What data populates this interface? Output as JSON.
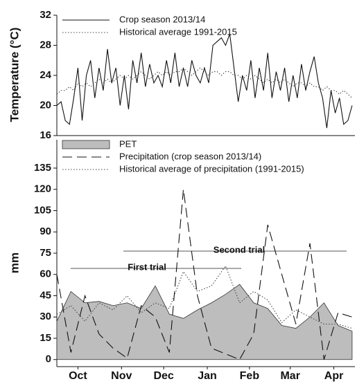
{
  "chart_data": [
    {
      "type": "line",
      "ylabel": "Temperature (°C)",
      "x": [
        0,
        3,
        6,
        9,
        12,
        15,
        18,
        21,
        24,
        27,
        30,
        33,
        36,
        39,
        42,
        45,
        48,
        51,
        54,
        57,
        60,
        63,
        66,
        69,
        72,
        75,
        78,
        81,
        84,
        87,
        90,
        93,
        96,
        99,
        102,
        105,
        108,
        111,
        114,
        117,
        120,
        123,
        126,
        129,
        132,
        135,
        138,
        141,
        144,
        147,
        150,
        153,
        156,
        159,
        162,
        165,
        168,
        171,
        174,
        177,
        180,
        183,
        186,
        189,
        192,
        195,
        198,
        201,
        204,
        207,
        210
      ],
      "xlim": [
        0,
        212
      ],
      "ylim": [
        16,
        32
      ],
      "yticks": [
        16,
        20,
        24,
        28,
        32
      ],
      "legend": "upper left",
      "series": [
        {
          "name": "Crop season 2013/14",
          "color": "#111111",
          "line_style": "solid",
          "values": [
            20,
            20.5,
            18,
            17.5,
            21,
            25,
            18,
            24,
            26,
            21,
            25,
            22,
            27.5,
            23,
            25,
            20,
            24,
            19.5,
            26,
            23,
            27,
            22.5,
            25.5,
            23,
            24,
            22.5,
            26,
            23,
            27,
            22.5,
            25,
            22.5,
            26,
            24,
            23,
            25,
            23,
            28,
            28.5,
            29,
            28,
            29.5,
            25,
            20.5,
            24,
            22,
            26,
            21,
            25,
            22,
            27,
            21,
            24.5,
            22,
            25,
            20.5,
            24,
            21,
            25.5,
            22,
            24.5,
            26.5,
            23,
            21,
            17,
            22,
            19,
            21,
            17.5,
            18,
            20
          ]
        },
        {
          "name": "Historical average 1991-2015",
          "color": "#444444",
          "line_style": "dotted",
          "values": [
            21.5,
            22,
            22,
            22.5,
            22,
            23,
            22.5,
            23,
            22.5,
            23,
            23.5,
            23,
            23.5,
            23,
            23.5,
            24,
            23.5,
            24,
            23.5,
            24,
            24.5,
            24,
            23.5,
            24,
            24.5,
            24,
            24.5,
            24,
            24.5,
            24.5,
            25,
            24.5,
            24,
            24.5,
            25,
            24.5,
            24,
            24.5,
            24.5,
            24,
            24.5,
            24.5,
            24,
            24,
            23.5,
            24,
            23.5,
            24,
            23.5,
            23,
            23.5,
            23,
            23.5,
            23,
            23.5,
            23,
            22.5,
            23,
            23,
            22.5,
            23,
            22.5,
            22.5,
            22,
            22.5,
            22,
            22,
            21.5,
            22,
            21.5,
            21
          ]
        }
      ]
    },
    {
      "type": "line",
      "ylabel": "mm",
      "x": [
        0,
        10,
        20,
        30,
        40,
        50,
        60,
        70,
        80,
        90,
        100,
        110,
        120,
        130,
        140,
        150,
        160,
        170,
        180,
        190,
        200,
        210
      ],
      "xlim": [
        0,
        212
      ],
      "xticks": [
        {
          "value": 15,
          "label": "Oct"
        },
        {
          "value": 46,
          "label": "Nov"
        },
        {
          "value": 76,
          "label": "Dec"
        },
        {
          "value": 107,
          "label": "Jan"
        },
        {
          "value": 137,
          "label": "Feb"
        },
        {
          "value": 166,
          "label": "Mar"
        },
        {
          "value": 197,
          "label": "Apr"
        }
      ],
      "ylim": [
        -5,
        155
      ],
      "yticks": [
        0,
        15,
        30,
        45,
        60,
        75,
        90,
        105,
        120,
        135
      ],
      "legend": "upper left",
      "series": [
        {
          "name": "PET",
          "color": "#bdbdbd",
          "kind": "area",
          "values": [
            27,
            48,
            40,
            41,
            38,
            40,
            36,
            52,
            32,
            29,
            35,
            40,
            46,
            53,
            40,
            36,
            24,
            22,
            30,
            40,
            24,
            20
          ]
        },
        {
          "name": "Precipitation (crop season 2013/14)",
          "color": "#111111",
          "kind": "line",
          "line_style": "dashed",
          "values": [
            60,
            5,
            45,
            18,
            8,
            1,
            38,
            30,
            5,
            120,
            45,
            8,
            4,
            0,
            18,
            95,
            60,
            25,
            82,
            0,
            33,
            30
          ]
        },
        {
          "name": "Historical average of precipitation (1991-2015)",
          "color": "#444444",
          "kind": "line",
          "line_style": "dotted",
          "values": [
            32,
            38,
            27,
            40,
            35,
            45,
            33,
            40,
            36,
            62,
            48,
            52,
            66,
            40,
            48,
            42,
            26,
            35,
            30,
            25,
            25,
            22
          ]
        }
      ],
      "annotations": [
        "First trial",
        "Second trial"
      ]
    }
  ]
}
